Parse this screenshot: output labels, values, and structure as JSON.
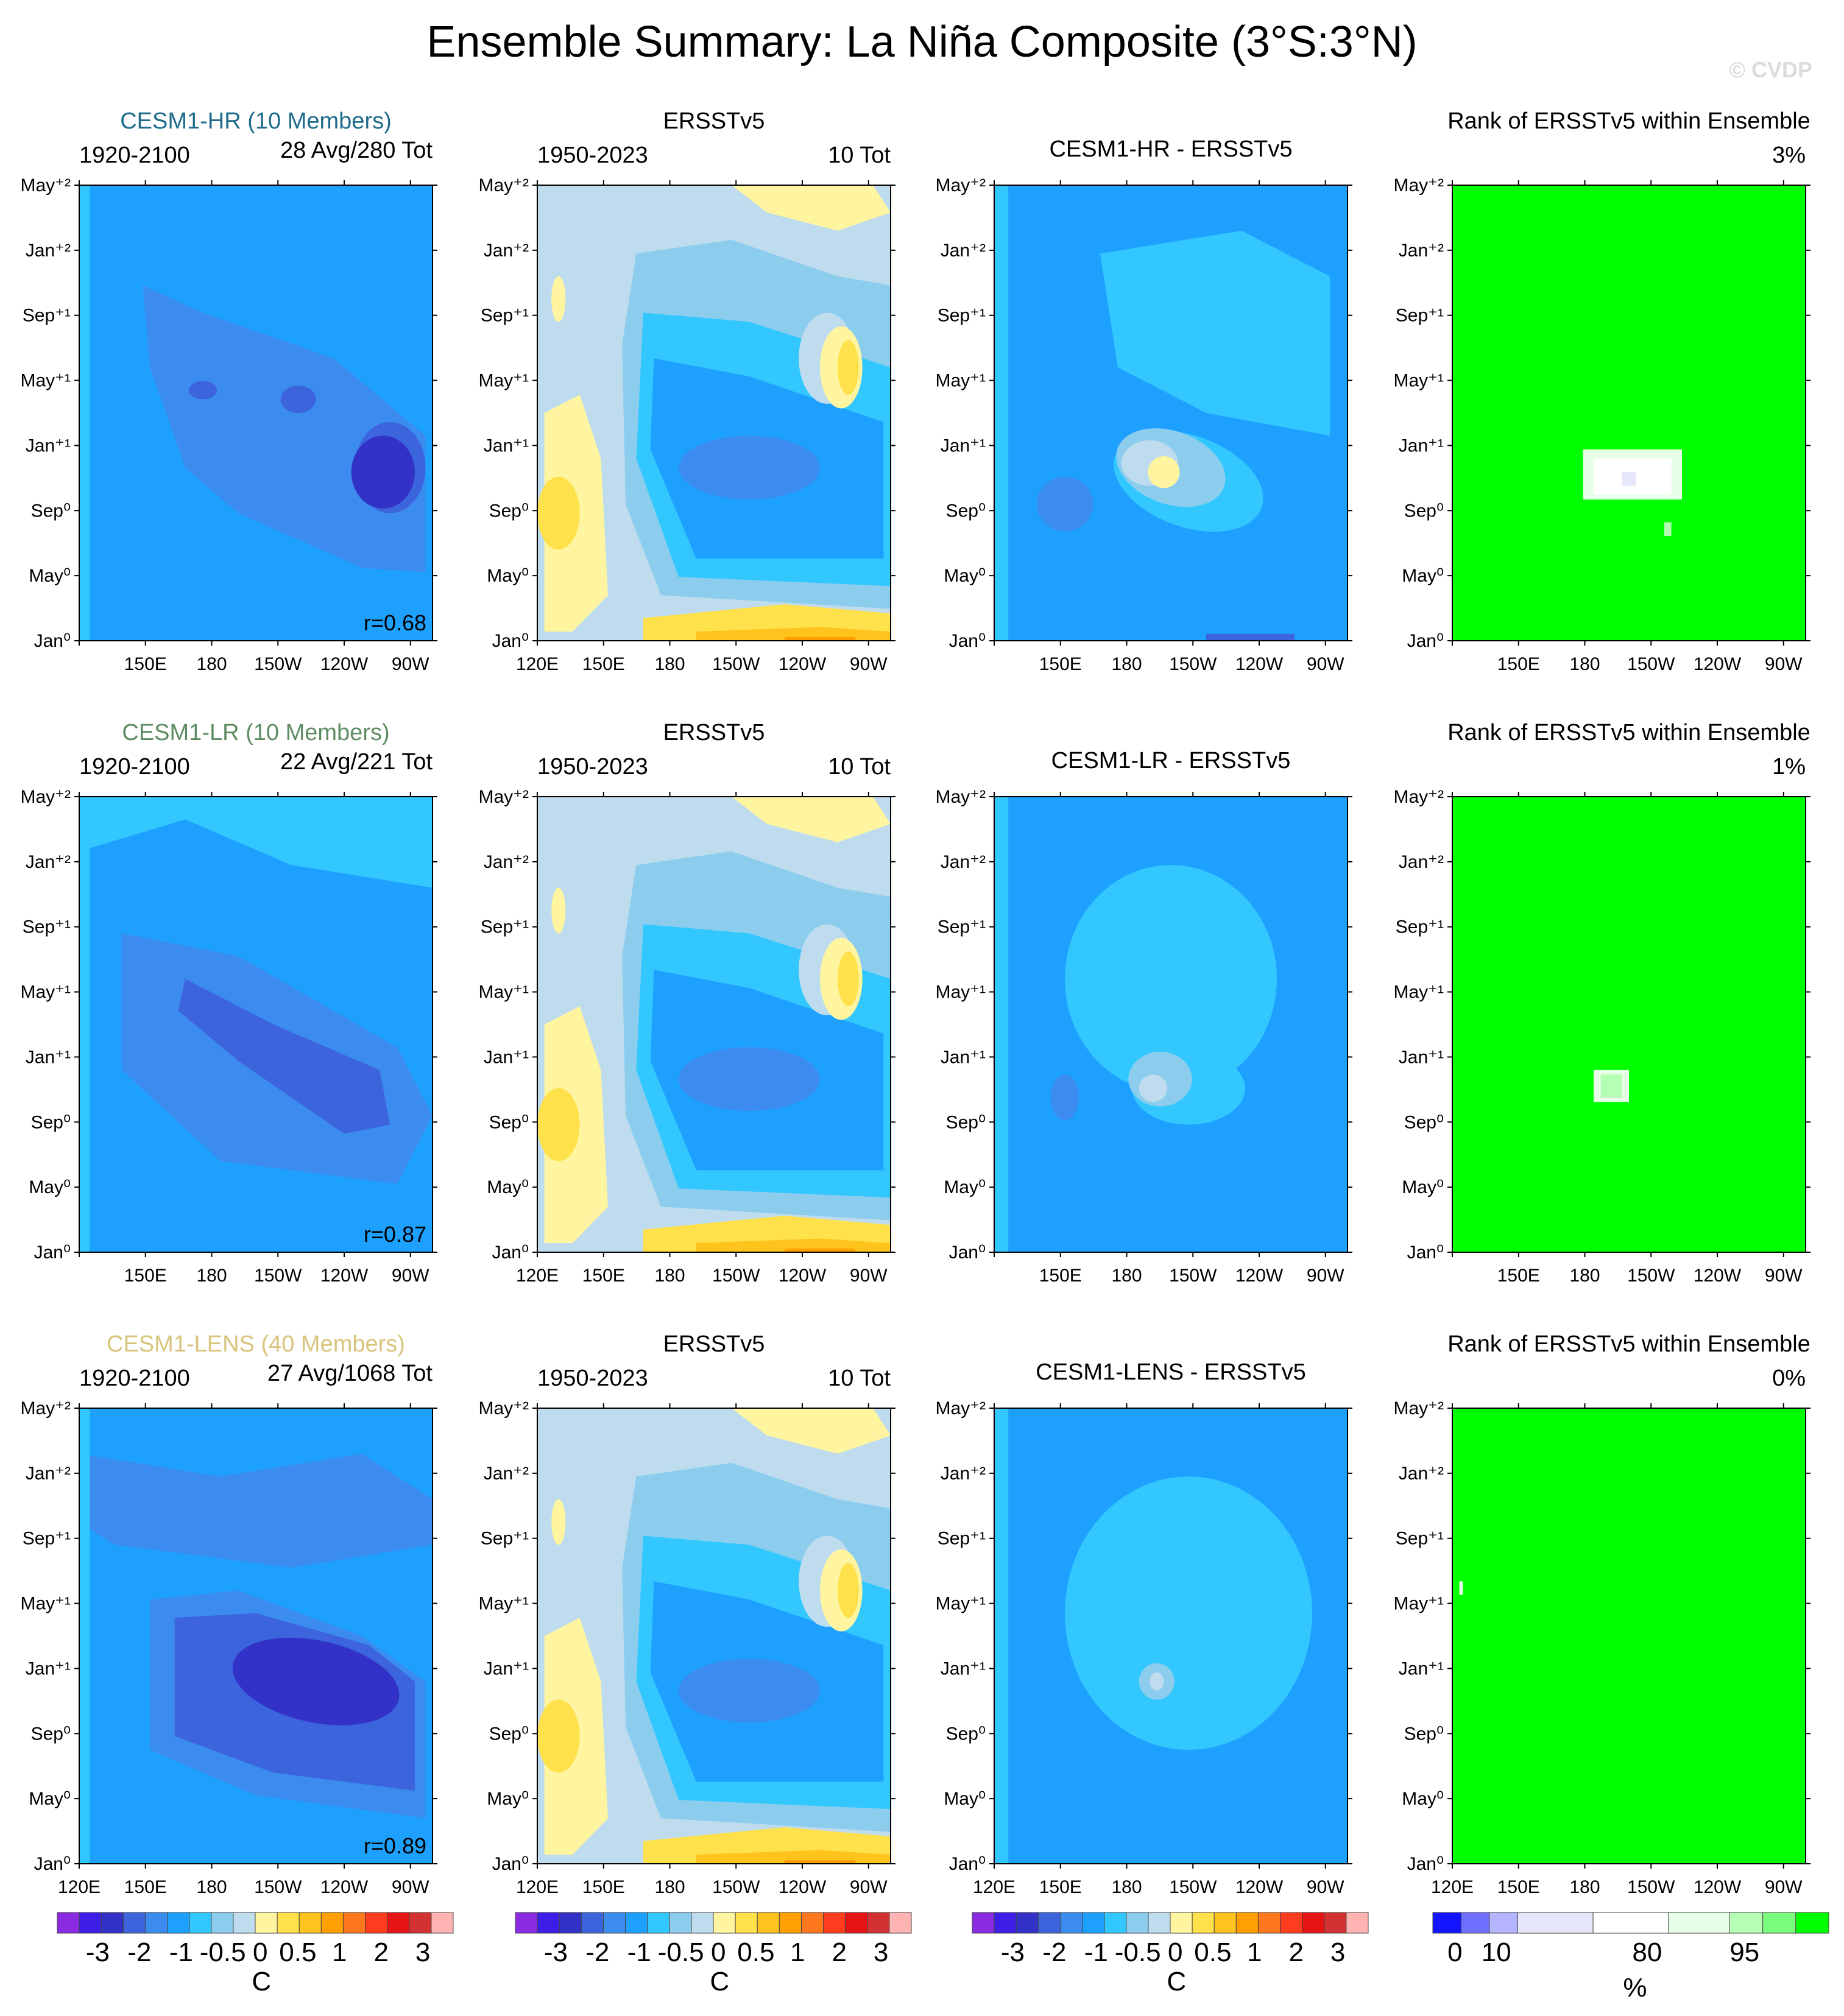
{
  "figure": {
    "title": "Ensemble Summary: La Niña Composite (3°S:3°N)",
    "watermark": "© CVDP"
  },
  "axes": {
    "x_ticks": [
      "120E",
      "150E",
      "180",
      "150W",
      "120W",
      "90W"
    ],
    "y_ticks": [
      "Jan⁰",
      "May⁰",
      "Sep⁰",
      "Jan⁺¹",
      "May⁺¹",
      "Sep⁺¹",
      "Jan⁺²",
      "May⁺²"
    ]
  },
  "rows": [
    {
      "model_title": "CESM1-HR (10 Members)",
      "model_color": "#1e6b8c",
      "model_period": "1920-2100",
      "model_count": "28 Avg/280 Tot",
      "correlation": "r=0.68",
      "obs_title": "ERSSTv5",
      "obs_period": "1950-2023",
      "obs_count": "10 Tot",
      "diff_title": "CESM1-HR - ERSSTv5",
      "rank_title": "Rank of ERSSTv5 within Ensemble",
      "rank_value": "3%"
    },
    {
      "model_title": "CESM1-LR (10 Members)",
      "model_color": "#5e8c63",
      "model_period": "1920-2100",
      "model_count": "22 Avg/221 Tot",
      "correlation": "r=0.87",
      "obs_title": "ERSSTv5",
      "obs_period": "1950-2023",
      "obs_count": "10 Tot",
      "diff_title": "CESM1-LR - ERSSTv5",
      "rank_title": "Rank of ERSSTv5 within Ensemble",
      "rank_value": "1%"
    },
    {
      "model_title": "CESM1-LENS (40 Members)",
      "model_color": "#d8c47c",
      "model_period": "1920-2100",
      "model_count": "27 Avg/1068 Tot",
      "correlation": "r=0.89",
      "obs_title": "ERSSTv5",
      "obs_period": "1950-2023",
      "obs_count": "10 Tot",
      "diff_title": "CESM1-LENS - ERSSTv5",
      "rank_title": "Rank of ERSSTv5 within Ensemble",
      "rank_value": "0%"
    }
  ],
  "colorbars": {
    "sst": {
      "colors": [
        "#8a2be2",
        "#3c1ee6",
        "#3232c8",
        "#3c64dc",
        "#3c8cf0",
        "#1ea0ff",
        "#32c8ff",
        "#8ccdee",
        "#bedcee",
        "#fff5a0",
        "#ffe14b",
        "#ffc31e",
        "#ffa000",
        "#ff781e",
        "#ff3c1e",
        "#e61414",
        "#d23232",
        "#ffb4b4"
      ],
      "labels": [
        "-3",
        "-2",
        "-1",
        "-0.5",
        "0",
        "0.5",
        "1",
        "2",
        "3"
      ],
      "unit": "C"
    },
    "rank": {
      "colors": [
        "#1414ff",
        "#6e6eff",
        "#b4b4ff",
        "#e6e6fa",
        "#ffffff",
        "#e6ffe6",
        "#b4ffb4",
        "#7cfc7c",
        "#00ff00"
      ],
      "labels": [
        "0",
        "10",
        "80",
        "95"
      ],
      "unit": "%"
    }
  },
  "chart_data": [
    {
      "type": "heatmap",
      "panel": "CESM1-HR composite",
      "description_values": "Hovmöller of equatorial SST anomaly (C); negative -0.5 to -1 basin-wide, strongest near 150W-100W around Jan+1",
      "x_range": [
        "120E",
        "80W"
      ],
      "y_range": [
        "Jan⁰",
        "May⁺²"
      ],
      "legend_levels": [
        -3,
        -2,
        -1,
        -0.5,
        0,
        0.5,
        1,
        2,
        3
      ]
    },
    {
      "type": "heatmap",
      "panel": "ERSSTv5 composite",
      "x_range": [
        "120E",
        "80W"
      ],
      "y_range": [
        "Jan⁰",
        "May⁺²"
      ],
      "legend_levels": [
        -3,
        -2,
        -1,
        -0.5,
        0,
        0.5,
        1,
        2,
        3
      ]
    },
    {
      "type": "heatmap",
      "panel": "Model minus observations",
      "x_range": [
        "120E",
        "80W"
      ],
      "y_range": [
        "Jan⁰",
        "May⁺²"
      ],
      "legend_levels": [
        -3,
        -2,
        -1,
        -0.5,
        0,
        0.5,
        1,
        2,
        3
      ]
    },
    {
      "type": "heatmap",
      "panel": "Rank of ERSSTv5 within ensemble",
      "x_range": [
        "120E",
        "80W"
      ],
      "y_range": [
        "Jan⁰",
        "May⁺²"
      ],
      "legend_levels": [
        0,
        10,
        80,
        95
      ]
    }
  ]
}
